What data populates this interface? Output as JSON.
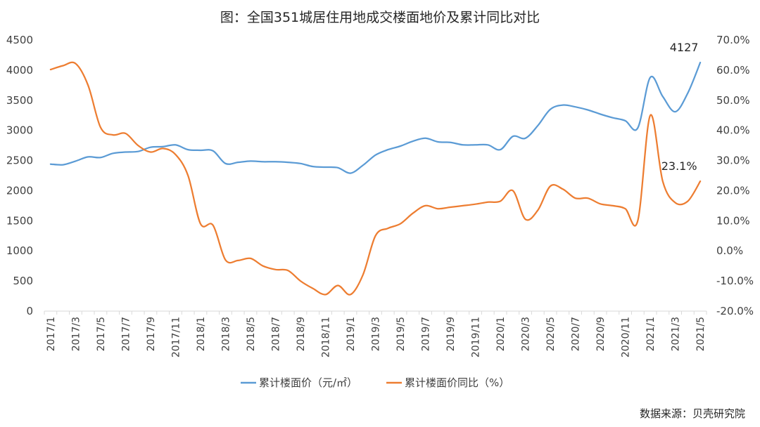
{
  "chart_data": {
    "type": "line",
    "title": "图：全国351城居住用地成交楼面地价及累计同比对比",
    "source": "数据来源：贝壳研究院",
    "x": [
      "2017/1",
      "2017/2",
      "2017/3",
      "2017/4",
      "2017/5",
      "2017/6",
      "2017/7",
      "2017/8",
      "2017/9",
      "2017/10",
      "2017/11",
      "2017/12",
      "2018/1",
      "2018/2",
      "2018/3",
      "2018/4",
      "2018/5",
      "2018/6",
      "2018/7",
      "2018/8",
      "2018/9",
      "2018/10",
      "2018/11",
      "2018/12",
      "2019/1",
      "2019/2",
      "2019/3",
      "2019/4",
      "2019/5",
      "2019/6",
      "2019/7",
      "2019/8",
      "2019/9",
      "2019/10",
      "2019/11",
      "2019/12",
      "2020/1",
      "2020/2",
      "2020/3",
      "2020/4",
      "2020/5",
      "2020/6",
      "2020/7",
      "2020/8",
      "2020/9",
      "2020/10",
      "2020/11",
      "2020/12",
      "2021/1",
      "2021/2",
      "2021/3",
      "2021/4",
      "2021/5"
    ],
    "x_ticks": [
      "2017/1",
      "2017/3",
      "2017/5",
      "2017/7",
      "2017/9",
      "2017/11",
      "2018/1",
      "2018/3",
      "2018/5",
      "2018/7",
      "2018/9",
      "2018/11",
      "2019/1",
      "2019/3",
      "2019/5",
      "2019/7",
      "2019/9",
      "2019/11",
      "2020/1",
      "2020/3",
      "2020/5",
      "2020/7",
      "2020/9",
      "2020/11",
      "2021/1",
      "2021/3",
      "2021/5"
    ],
    "y_left": {
      "ylim": [
        0,
        4500
      ],
      "ticks": [
        "0",
        "500",
        "1000",
        "1500",
        "2000",
        "2500",
        "3000",
        "3500",
        "4000",
        "4500"
      ]
    },
    "y_right": {
      "ylim": [
        -20,
        70
      ],
      "ticks": [
        "-20.0%",
        "-10.0%",
        "0.0%",
        "10.0%",
        "20.0%",
        "30.0%",
        "40.0%",
        "50.0%",
        "60.0%",
        "70.0%"
      ]
    },
    "series": [
      {
        "name": "累计楼面价（元/㎡）",
        "axis": "left",
        "color": "#5b9bd5",
        "values": [
          2440,
          2430,
          2490,
          2560,
          2550,
          2620,
          2640,
          2650,
          2720,
          2730,
          2760,
          2680,
          2670,
          2660,
          2450,
          2470,
          2490,
          2480,
          2480,
          2470,
          2450,
          2400,
          2390,
          2380,
          2290,
          2420,
          2590,
          2680,
          2740,
          2820,
          2870,
          2810,
          2800,
          2760,
          2760,
          2760,
          2680,
          2900,
          2870,
          3080,
          3350,
          3420,
          3390,
          3340,
          3270,
          3210,
          3160,
          3040,
          3880,
          3560,
          3310,
          3620,
          4127
        ]
      },
      {
        "name": "累计楼面价同比（%）",
        "axis": "right",
        "color": "#ed7d31",
        "values": [
          60.2,
          61.5,
          62.2,
          55.0,
          41.0,
          38.5,
          39.0,
          35.0,
          32.8,
          34.0,
          32.0,
          25.0,
          9.0,
          8.5,
          -3.0,
          -3.2,
          -2.5,
          -5.0,
          -6.2,
          -6.5,
          -10.0,
          -12.5,
          -14.5,
          -11.5,
          -14.5,
          -8.0,
          5.0,
          7.5,
          9.0,
          12.5,
          15.0,
          14.0,
          14.5,
          15.0,
          15.5,
          16.2,
          16.5,
          20.0,
          10.5,
          13.5,
          21.5,
          20.5,
          17.5,
          17.5,
          15.6,
          15.0,
          14.0,
          10.0,
          45.0,
          23.0,
          16.0,
          16.5,
          23.1
        ]
      }
    ],
    "annotations": [
      "4127",
      "23.1%"
    ],
    "legend": "bottom"
  }
}
